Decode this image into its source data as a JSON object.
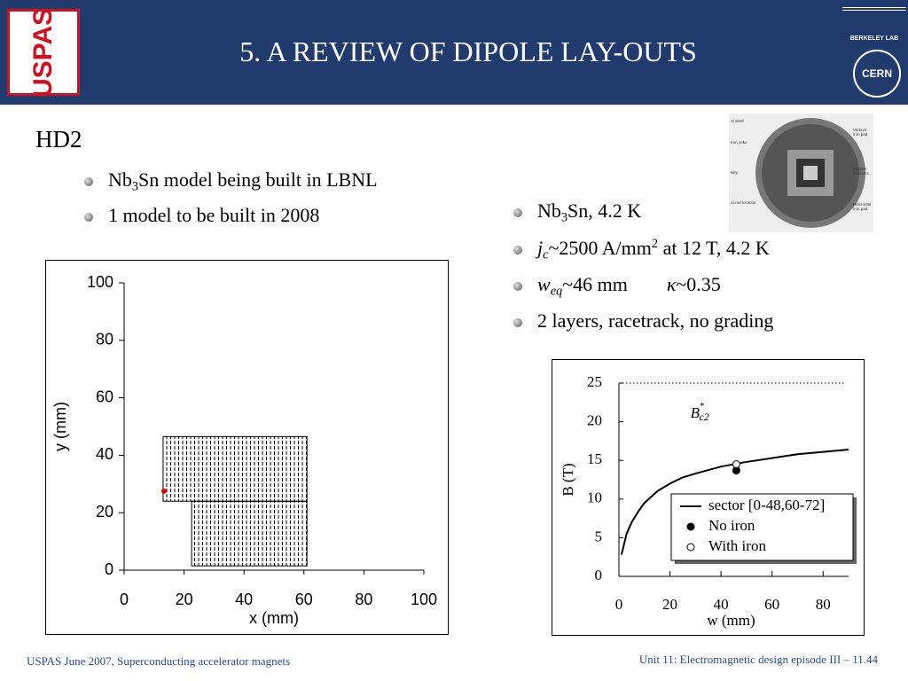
{
  "header": {
    "title": "5. A REVIEW OF DIPOLE LAY-OUTS",
    "logo_left": "USPAS",
    "logo_right_top": "BERKELEY LAB",
    "logo_right_bottom": "CERN"
  },
  "section": "HD2",
  "left_bullets": [
    [
      {
        "t": "Nb"
      },
      {
        "t": "3",
        "s": "sub"
      },
      {
        "t": "Sn model being built in LBNL"
      }
    ],
    [
      {
        "t": "1 model to be built in 2008"
      }
    ]
  ],
  "right_bullets": [
    [
      {
        "t": "Nb"
      },
      {
        "t": "3",
        "s": "sub"
      },
      {
        "t": "Sn, 4.2 K"
      }
    ],
    [
      {
        "t": "j",
        "s": "i"
      },
      {
        "t": "c",
        "s": "sub-i"
      },
      {
        "t": "~2500 A/mm"
      },
      {
        "t": "2",
        "s": "sup"
      },
      {
        "t": " at 12 T, 4.2 K"
      }
    ],
    [
      {
        "t": "w",
        "s": "i"
      },
      {
        "t": "eq",
        "s": "sub-i"
      },
      {
        "t": "~46 mm"
      },
      {
        "t": "κ",
        "s": "i"
      },
      {
        "t": "~0.35"
      }
    ],
    [
      {
        "t": "2 layers, racetrack, no grading"
      }
    ]
  ],
  "figure_labels": [
    "Al shell",
    "Iron yoke",
    "Key",
    "Al rod location",
    "Vertical iron pad",
    "Bladder locations",
    "Horizontal iron pad"
  ],
  "footer": {
    "left": "USPAS June  2007,  Superconducting accelerator magnets",
    "right": "Unit 11: Electromagnetic design episode III – 11.44"
  },
  "chart_data": [
    {
      "type": "layout",
      "xlabel": "x (mm)",
      "ylabel": "y (mm)",
      "xlim": [
        0,
        100
      ],
      "ylim": [
        0,
        100
      ],
      "xticks": [
        0,
        20,
        40,
        60,
        80,
        100
      ],
      "yticks": [
        0,
        20,
        40,
        60,
        80,
        100
      ],
      "blocks": [
        {
          "x": [
            13,
            61
          ],
          "y": [
            24,
            46.5
          ]
        },
        {
          "x": [
            22.5,
            61
          ],
          "y": [
            1.5,
            24
          ]
        }
      ],
      "points": {
        "x": [
          13.3
        ],
        "y": [
          27.5
        ],
        "color": "#e00000"
      }
    },
    {
      "type": "line",
      "xlabel": "w (mm)",
      "ylabel": "B  (T)",
      "xlim": [
        0,
        90
      ],
      "ylim": [
        0,
        25
      ],
      "xticks": [
        0,
        20,
        40,
        60,
        80
      ],
      "yticks": [
        0,
        5,
        10,
        15,
        20,
        25
      ],
      "legend": "lower right",
      "series": [
        {
          "name": "sector [0-48,60-72]",
          "mode": "line",
          "color": "#000000",
          "x": [
            1,
            3,
            5,
            8,
            10,
            15,
            20,
            25,
            30,
            40,
            50,
            60,
            70,
            80,
            90
          ],
          "values": [
            2.8,
            5.5,
            7,
            8.6,
            9.5,
            11,
            12,
            12.8,
            13.3,
            14.2,
            14.8,
            15.3,
            15.8,
            16.1,
            16.4
          ]
        },
        {
          "name": "No iron",
          "mode": "marker",
          "marker": "filled",
          "color": "#000000",
          "x": [
            46
          ],
          "values": [
            13.7
          ]
        },
        {
          "name": "With iron",
          "mode": "marker",
          "marker": "open",
          "color": "#000000",
          "x": [
            46
          ],
          "values": [
            14.5
          ]
        }
      ],
      "reference": {
        "value": 25,
        "x": [
          0,
          89
        ],
        "label": [
          {
            "t": "B",
            "s": "i"
          },
          {
            "t": "*",
            "s": "sup"
          },
          {
            "t": "c2",
            "s": "sub-i"
          }
        ],
        "label_x": 28,
        "label_y": 21
      }
    }
  ]
}
